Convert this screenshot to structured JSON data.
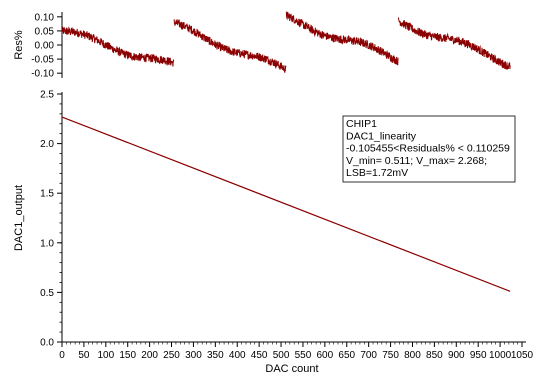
{
  "chart_data": [
    {
      "type": "line",
      "panel": "residuals",
      "ylabel": "Res%",
      "xlabel": "",
      "xlim": [
        0,
        1050
      ],
      "ylim": [
        -0.11,
        0.11
      ],
      "y_ticks": [
        0.1,
        0.05,
        0.0,
        -0.05,
        -0.1
      ],
      "y_tick_labels": [
        "0.10",
        "0.05",
        "0.00",
        "-0.05",
        "-0.10"
      ],
      "grid": false,
      "series_color": "#8b0000",
      "segments": [
        {
          "x": [
            0,
            255
          ],
          "y": [
            0.05,
            -0.075
          ]
        },
        {
          "x": [
            256,
            511
          ],
          "y": [
            0.07,
            -0.09
          ]
        },
        {
          "x": [
            512,
            767
          ],
          "y": [
            0.095,
            -0.05
          ]
        },
        {
          "x": [
            768,
            1023
          ],
          "y": [
            0.085,
            -0.065
          ]
        }
      ]
    },
    {
      "type": "line",
      "panel": "output",
      "xlabel": "DAC  count",
      "ylabel": "DAC1_output",
      "xlim": [
        0,
        1050
      ],
      "ylim": [
        0.0,
        2.5
      ],
      "x_ticks": [
        0,
        50,
        100,
        150,
        200,
        250,
        300,
        350,
        400,
        450,
        500,
        550,
        600,
        650,
        700,
        750,
        800,
        850,
        900,
        950,
        1000,
        1050
      ],
      "x_tick_labels": [
        "0",
        "50",
        "100",
        "150",
        "200",
        "250",
        "300",
        "350",
        "400",
        "450",
        "500",
        "550",
        "600",
        "650",
        "700",
        "750",
        "800",
        "850",
        "900",
        "950",
        "1000",
        "1050"
      ],
      "y_ticks": [
        0.0,
        0.5,
        1.0,
        1.5,
        2.0,
        2.5
      ],
      "y_tick_labels": [
        "0.0",
        "0.5",
        "1.0",
        "1.5",
        "2.0",
        "2.5"
      ],
      "grid": false,
      "series_color": "#8b0000",
      "x": [
        0,
        1023
      ],
      "y": [
        2.268,
        0.511
      ],
      "legend_lines": [
        "CHIP1",
        "DAC1_linearity",
        "-0.105455<Residuals% < 0.110259",
        "V_min= 0.511; V_max= 2.268;",
        "LSB=1.72mV"
      ],
      "legend_placement": "top-right"
    }
  ]
}
